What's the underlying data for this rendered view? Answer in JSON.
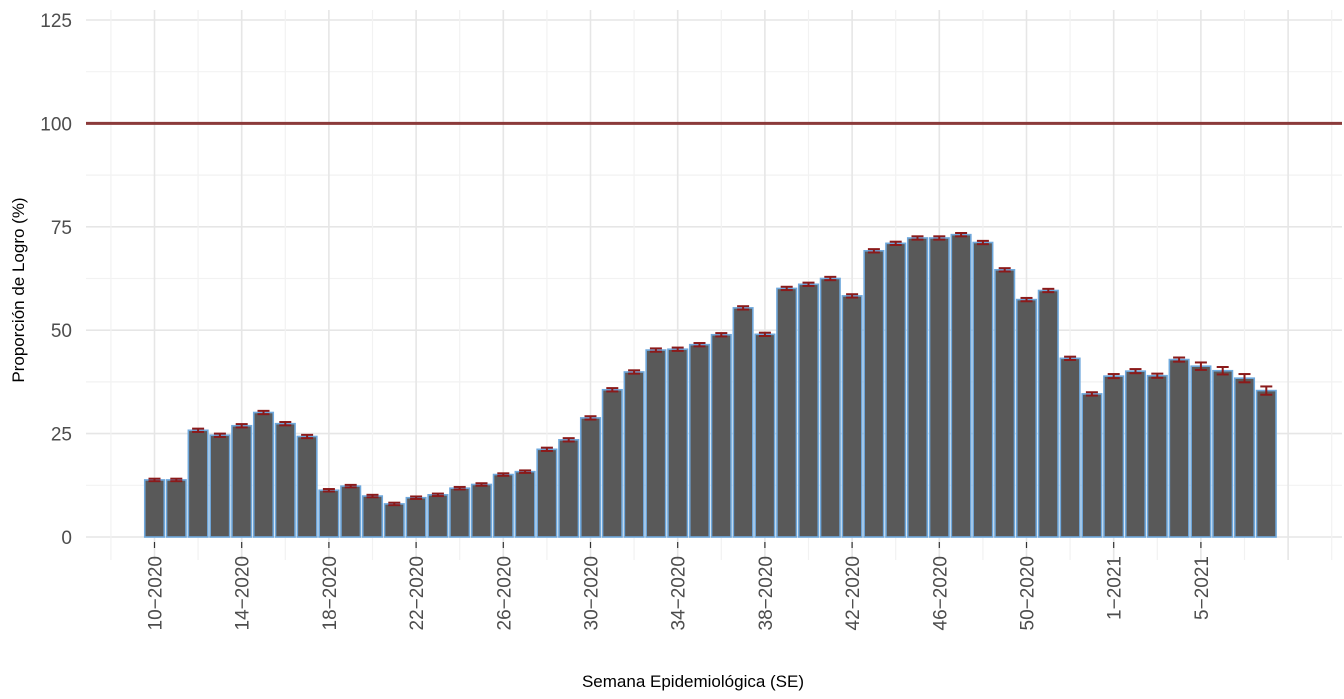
{
  "chart_data": {
    "type": "bar",
    "title": "",
    "xlabel": "Semana Epidemiológica (SE)",
    "ylabel": "Proporción de Logro (%)",
    "ylim": [
      0,
      125
    ],
    "yticks": [
      "0",
      "25",
      "50",
      "75",
      "100",
      "125"
    ],
    "reference_line": {
      "value": 100,
      "color": "#8b3a3a"
    },
    "grid": true,
    "legend": "none",
    "colors": {
      "bar_fill": "#595959",
      "bar_outline": "#6fa8dc",
      "error_bar": "#8b1a1a",
      "reference_line": "#8b3a3a"
    },
    "x_tick_labels": [
      {
        "index": 0,
        "label": "10−2020"
      },
      {
        "index": 4,
        "label": "14−2020"
      },
      {
        "index": 8,
        "label": "18−2020"
      },
      {
        "index": 12,
        "label": "22−2020"
      },
      {
        "index": 16,
        "label": "26−2020"
      },
      {
        "index": 20,
        "label": "30−2020"
      },
      {
        "index": 24,
        "label": "34−2020"
      },
      {
        "index": 28,
        "label": "38−2020"
      },
      {
        "index": 32,
        "label": "42−2020"
      },
      {
        "index": 36,
        "label": "46−2020"
      },
      {
        "index": 40,
        "label": "50−2020"
      },
      {
        "index": 44,
        "label": "1−2021"
      },
      {
        "index": 48,
        "label": "5−2021"
      }
    ],
    "categories": [
      "10-2020",
      "11-2020",
      "12-2020",
      "13-2020",
      "14-2020",
      "15-2020",
      "16-2020",
      "17-2020",
      "18-2020",
      "19-2020",
      "20-2020",
      "21-2020",
      "22-2020",
      "23-2020",
      "24-2020",
      "25-2020",
      "26-2020",
      "27-2020",
      "28-2020",
      "29-2020",
      "30-2020",
      "31-2020",
      "32-2020",
      "33-2020",
      "34-2020",
      "35-2020",
      "36-2020",
      "37-2020",
      "38-2020",
      "39-2020",
      "40-2020",
      "41-2020",
      "42-2020",
      "43-2020",
      "44-2020",
      "45-2020",
      "46-2020",
      "47-2020",
      "48-2020",
      "49-2020",
      "50-2020",
      "51-2020",
      "52-2020",
      "53-2020",
      "1-2021",
      "2-2021",
      "3-2021",
      "4-2021",
      "5-2021",
      "6-2021",
      "7-2021",
      "8-2021"
    ],
    "values": [
      13.8,
      13.8,
      25.8,
      24.6,
      26.9,
      30.1,
      27.4,
      24.3,
      11.3,
      12.3,
      9.9,
      8.0,
      9.5,
      10.2,
      11.8,
      12.7,
      15.1,
      15.8,
      21.2,
      23.5,
      28.8,
      35.6,
      39.9,
      45.2,
      45.4,
      46.5,
      48.9,
      55.4,
      49.0,
      60.1,
      61.1,
      62.5,
      58.3,
      69.2,
      71.0,
      72.3,
      72.3,
      73.1,
      71.2,
      64.6,
      57.4,
      59.6,
      43.2,
      34.6,
      38.9,
      40.1,
      39.0,
      42.9,
      41.3,
      40.2,
      38.4,
      35.4
    ],
    "error": [
      0.3,
      0.3,
      0.4,
      0.4,
      0.4,
      0.4,
      0.4,
      0.4,
      0.3,
      0.3,
      0.3,
      0.3,
      0.3,
      0.3,
      0.3,
      0.3,
      0.3,
      0.3,
      0.4,
      0.4,
      0.4,
      0.4,
      0.4,
      0.4,
      0.4,
      0.4,
      0.4,
      0.4,
      0.4,
      0.4,
      0.4,
      0.4,
      0.4,
      0.4,
      0.4,
      0.4,
      0.4,
      0.4,
      0.4,
      0.4,
      0.4,
      0.4,
      0.4,
      0.4,
      0.5,
      0.5,
      0.5,
      0.5,
      0.9,
      0.9,
      1.0,
      1.0
    ]
  }
}
